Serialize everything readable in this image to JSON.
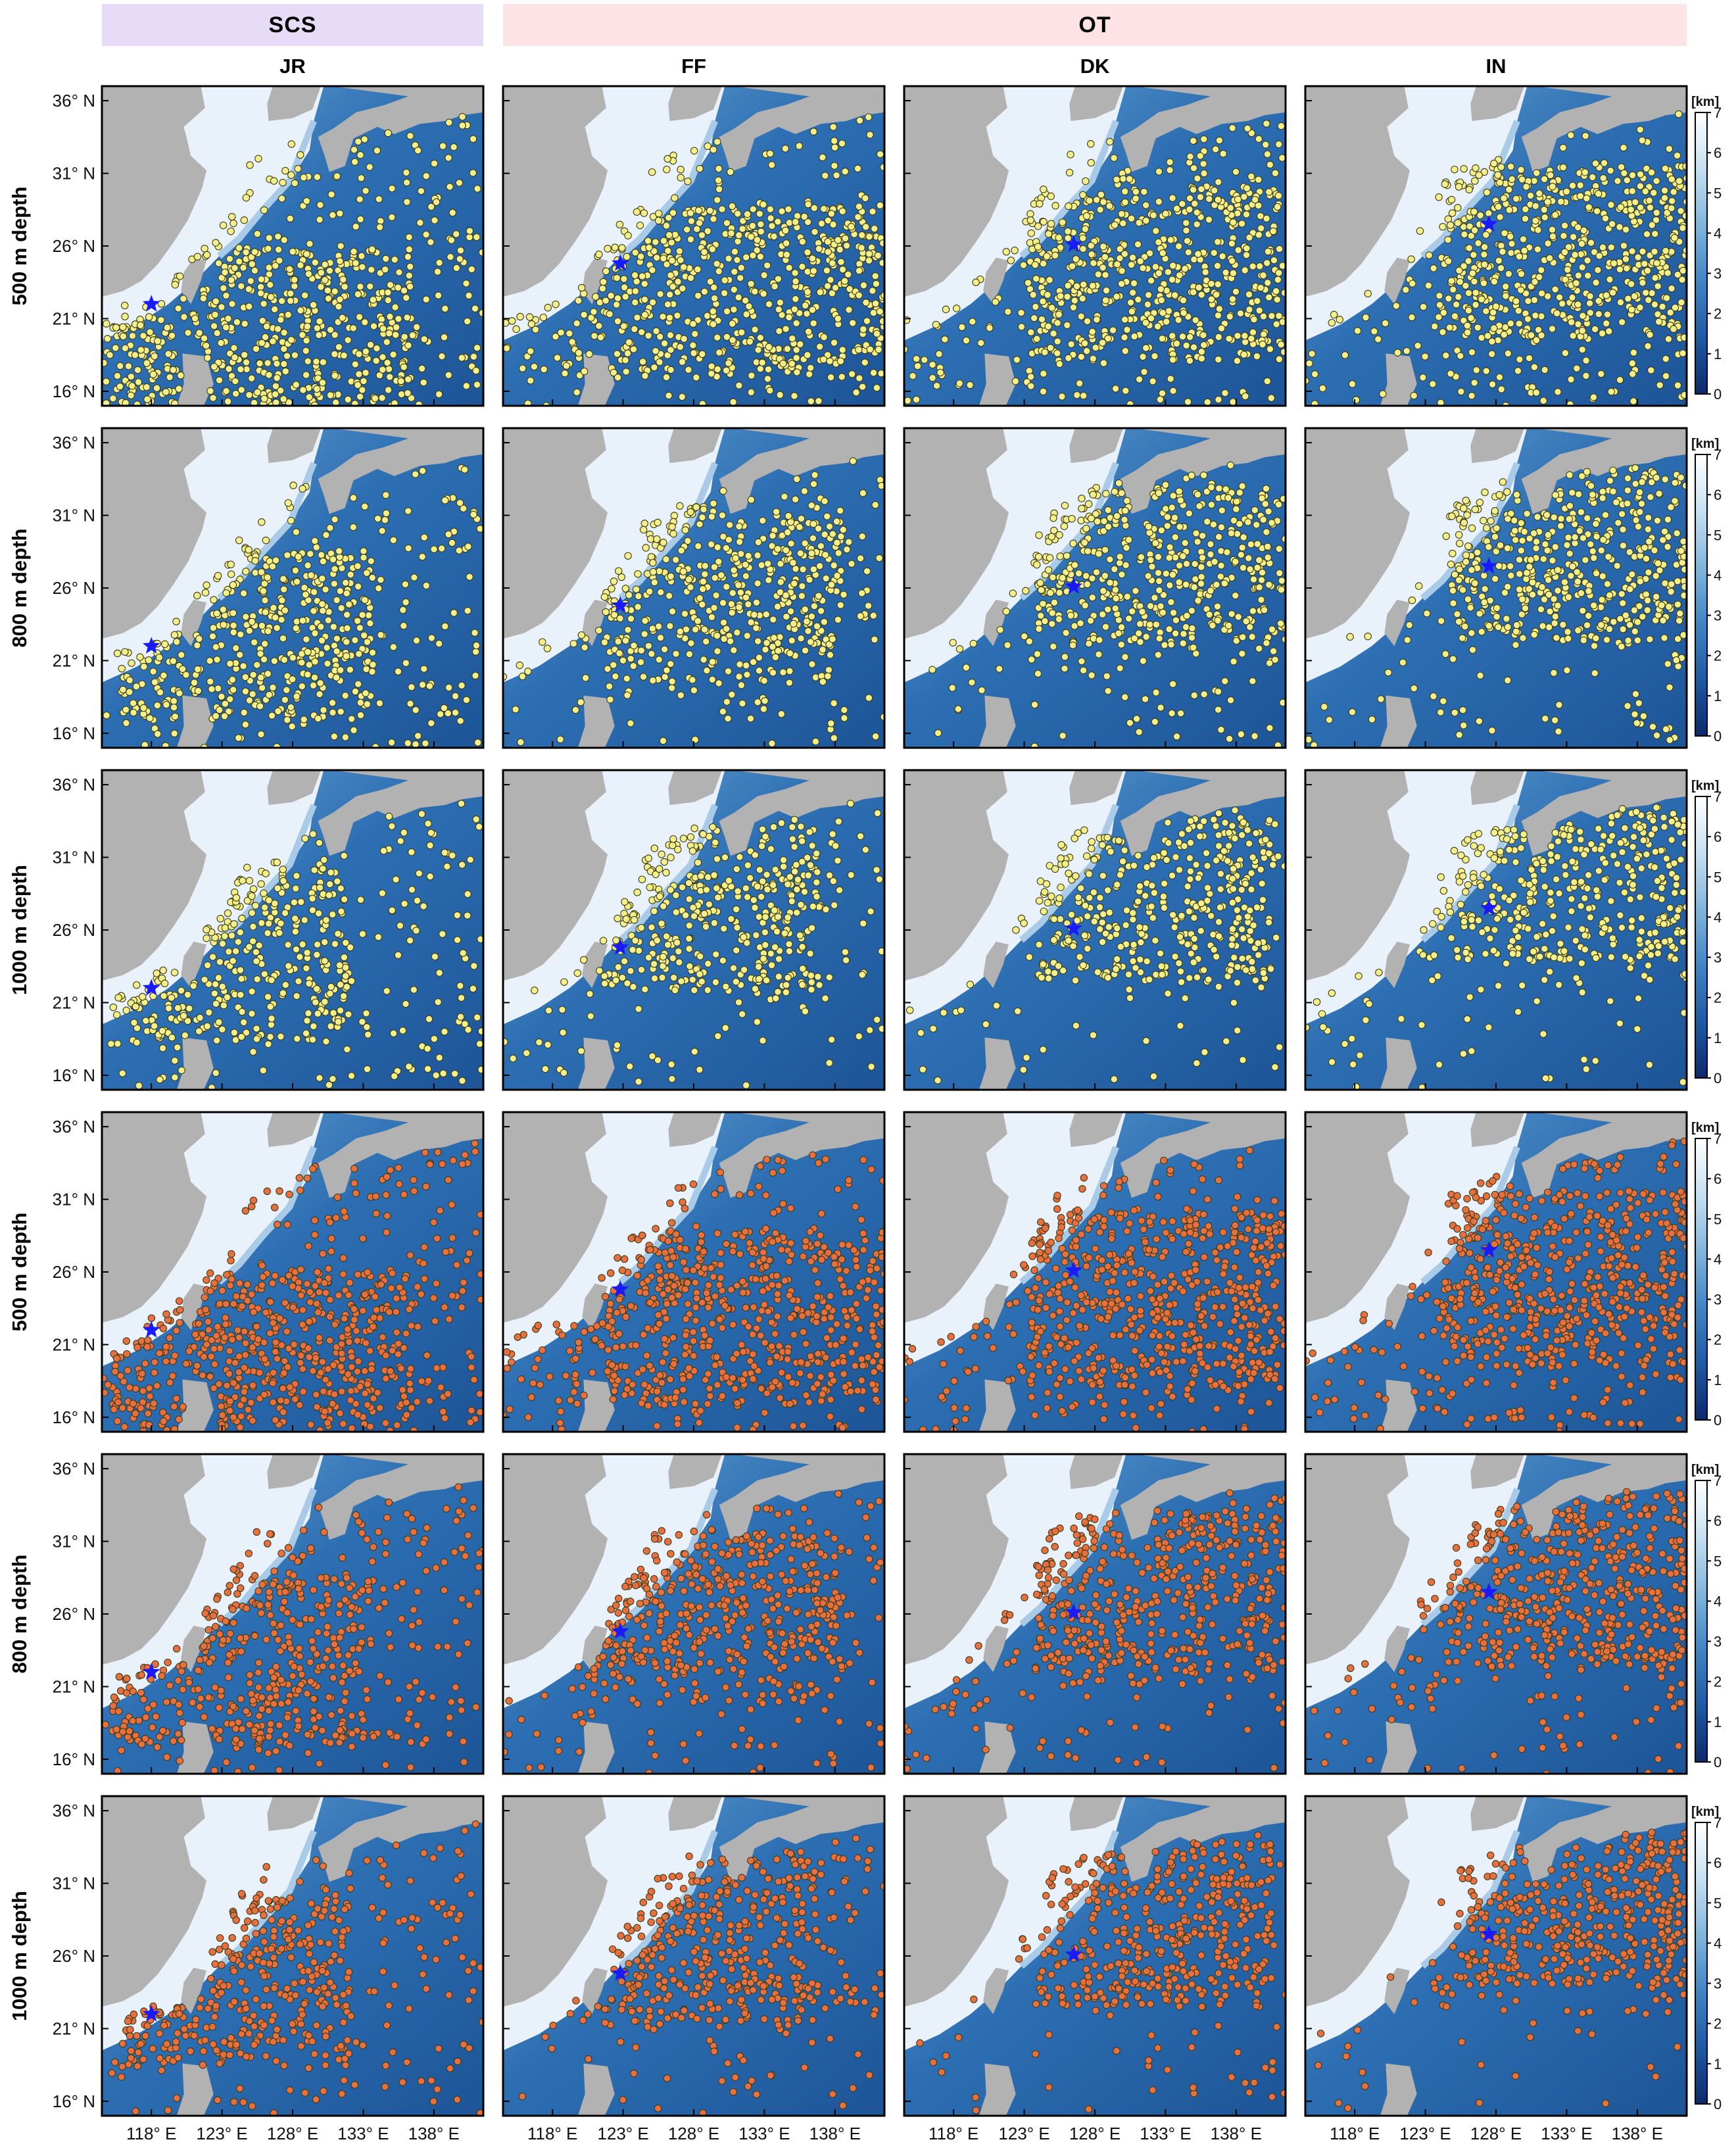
{
  "groups": [
    {
      "id": "scs",
      "label": "SCS",
      "color": "#e6dcf8"
    },
    {
      "id": "ot",
      "label": "OT",
      "color": "#fde2e6"
    }
  ],
  "columns": [
    {
      "id": "jr",
      "label": "JR",
      "group": "scs",
      "release_lon": 118.0,
      "release_lat": 22.0
    },
    {
      "id": "ff",
      "label": "FF",
      "group": "ot",
      "release_lon": 122.8,
      "release_lat": 24.8
    },
    {
      "id": "dk",
      "label": "DK",
      "group": "ot",
      "release_lon": 126.5,
      "release_lat": 26.1
    },
    {
      "id": "in",
      "label": "IN",
      "group": "ot",
      "release_lon": 127.5,
      "release_lat": 27.5
    }
  ],
  "rows": [
    {
      "id": "r1",
      "label": "500 m depth",
      "depth_m": 500,
      "particle_color": "#f5ef8a",
      "spread": 1.0
    },
    {
      "id": "r2",
      "label": "800 m depth",
      "depth_m": 800,
      "particle_color": "#f5ef8a",
      "spread": 0.65
    },
    {
      "id": "r3",
      "label": "1000 m depth",
      "depth_m": 1000,
      "particle_color": "#f5ef8a",
      "spread": 0.45
    },
    {
      "id": "r4",
      "label": "500 m depth",
      "depth_m": 500,
      "particle_color": "#e8703e",
      "spread": 1.0
    },
    {
      "id": "r5",
      "label": "800 m depth",
      "depth_m": 800,
      "particle_color": "#e8703e",
      "spread": 0.65
    },
    {
      "id": "r6",
      "label": "1000 m depth",
      "depth_m": 1000,
      "particle_color": "#e8703e",
      "spread": 0.45
    }
  ],
  "map_extent": {
    "lon": [
      114.5,
      141.5
    ],
    "lat": [
      15.0,
      37.0
    ]
  },
  "lat_ticks": [
    {
      "value": 36,
      "label": "36° N"
    },
    {
      "value": 31,
      "label": "31° N"
    },
    {
      "value": 26,
      "label": "26° N"
    },
    {
      "value": 21,
      "label": "21° N"
    },
    {
      "value": 16,
      "label": "16° N"
    }
  ],
  "lon_ticks": [
    {
      "value": 118,
      "label": "118° E"
    },
    {
      "value": 123,
      "label": "123° E"
    },
    {
      "value": 128,
      "label": "128° E"
    },
    {
      "value": 133,
      "label": "133° E"
    },
    {
      "value": 138,
      "label": "138° E"
    }
  ],
  "colorbar": {
    "unit": "[km]",
    "ticks": [
      "0",
      "1",
      "2",
      "3",
      "4",
      "5",
      "6",
      "7"
    ],
    "range": [
      0,
      7
    ],
    "colors": [
      "#0b2a6b",
      "#1c5aa6",
      "#3f86c6",
      "#7fb6dd",
      "#c6e0f1",
      "#ffffff"
    ]
  },
  "styles": {
    "land": "#b2b2b2",
    "shelf": "#e9f2fa",
    "deep_sea": "#2d6fb3",
    "release_marker": "#1a1aff",
    "particle_edge": "#3a3a1a"
  }
}
